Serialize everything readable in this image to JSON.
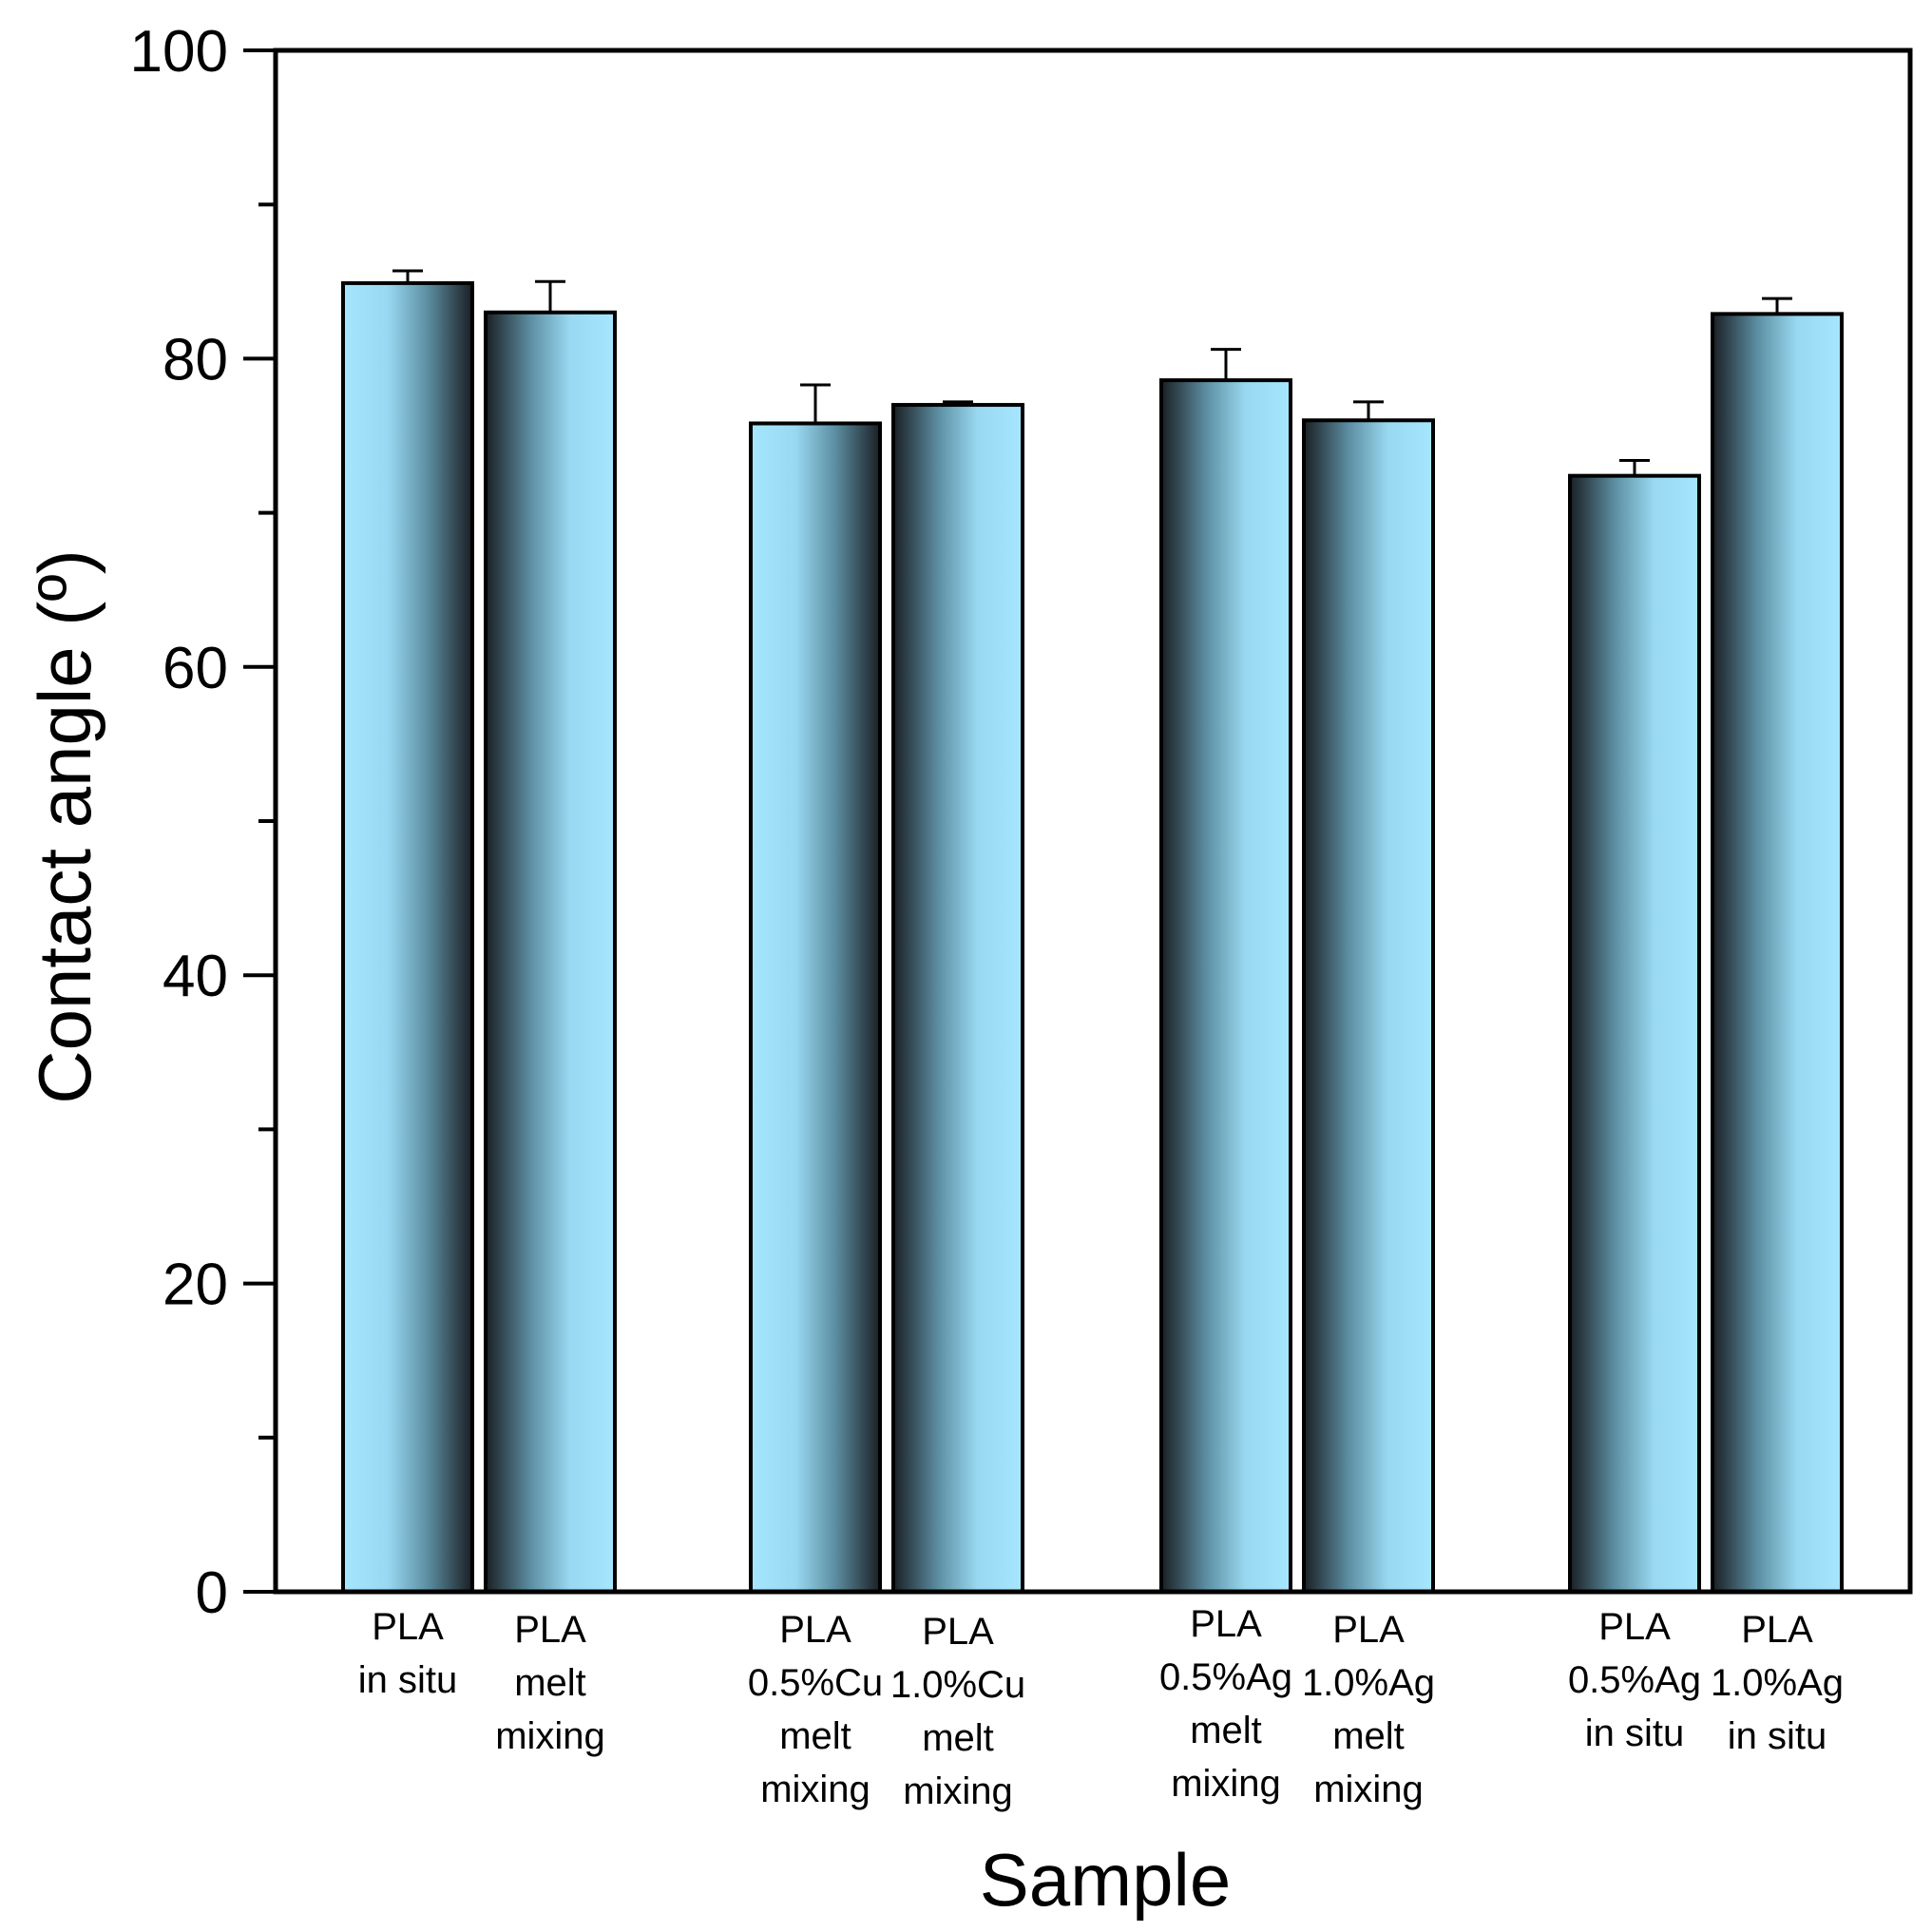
{
  "chart_data": {
    "type": "bar",
    "title": "",
    "xlabel": "Sample",
    "ylabel": "Contact angle (º)",
    "ylim": [
      0,
      100
    ],
    "yticks_major": [
      0,
      20,
      40,
      60,
      80,
      100
    ],
    "yticks_minor": [
      10,
      30,
      50,
      70,
      90
    ],
    "grid": false,
    "categories": [
      [
        "PLA",
        "in situ"
      ],
      [
        "PLA",
        "melt",
        "mixing"
      ],
      [
        "PLA",
        "0.5%Cu",
        "melt",
        "mixing"
      ],
      [
        "PLA",
        "1.0%Cu",
        "melt",
        "mixing"
      ],
      [
        "PLA",
        "0.5%Ag",
        "melt",
        "mixing"
      ],
      [
        "PLA",
        "1.0%Ag",
        "melt",
        "mixing"
      ],
      [
        "PLA",
        "0.5%Ag",
        "in situ"
      ],
      [
        "PLA",
        "1.0%Ag",
        "in situ"
      ]
    ],
    "values": [
      84.9,
      83.0,
      75.8,
      77.0,
      78.6,
      76.0,
      72.4,
      82.9
    ],
    "errors": [
      0.8,
      2.0,
      2.5,
      0.2,
      2.0,
      1.2,
      1.0,
      1.0
    ],
    "groups": [
      [
        0,
        1
      ],
      [
        2,
        3
      ],
      [
        4,
        5
      ],
      [
        6,
        7
      ]
    ],
    "gradient_direction": [
      "light-left",
      "dark-left",
      "light-left",
      "dark-left",
      "dark-left",
      "dark-left",
      "dark-left",
      "dark-left"
    ],
    "colors": {
      "bar_light": "#a6e6ff",
      "bar_dark": "#1a1f24",
      "axis": "#000000"
    }
  }
}
